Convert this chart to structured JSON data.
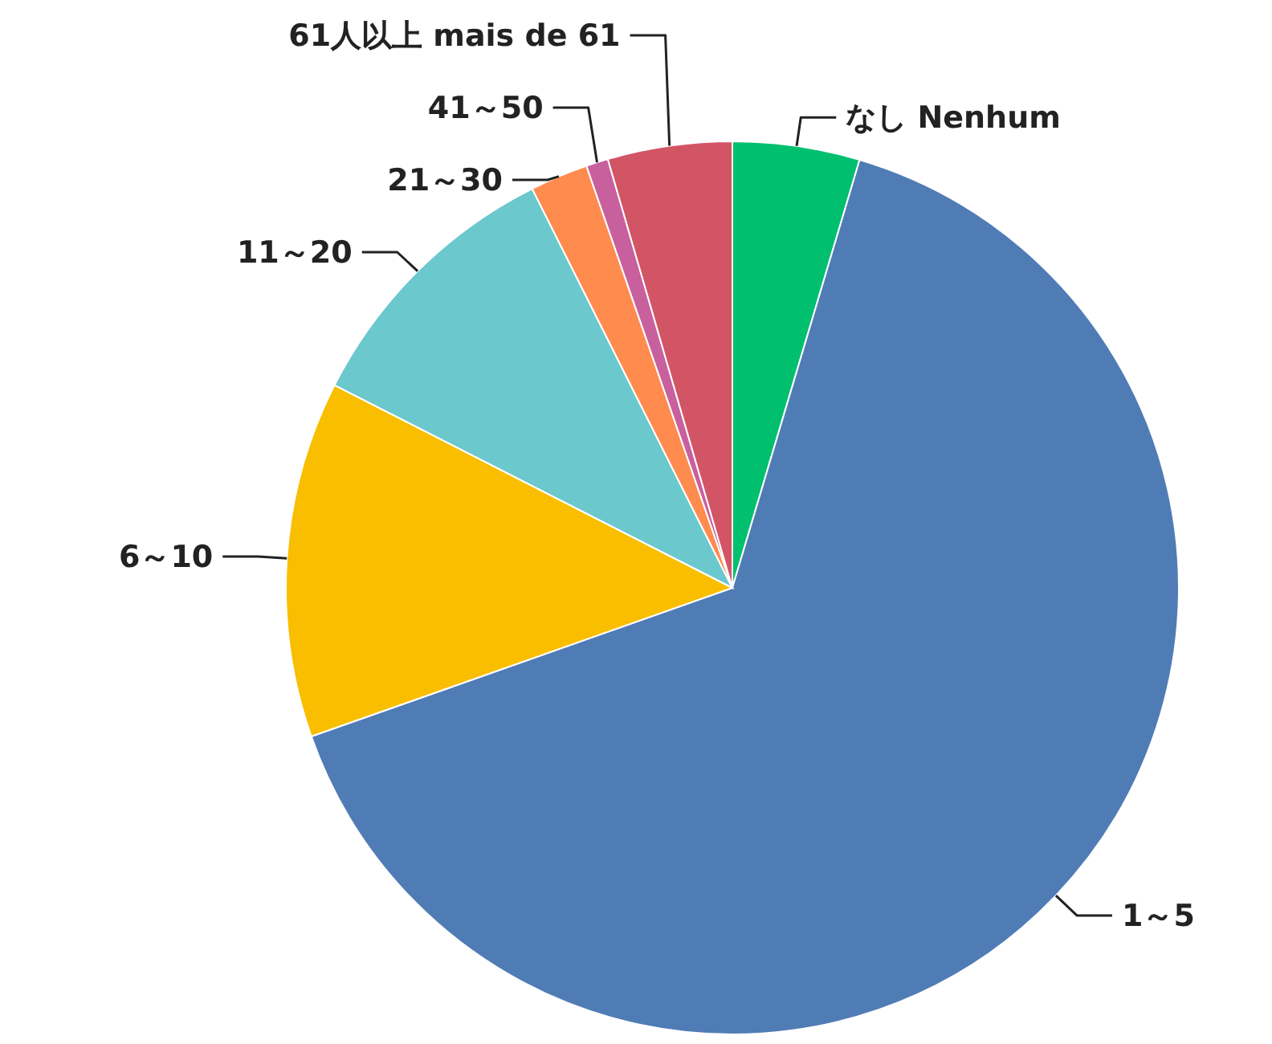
{
  "chart_data": {
    "type": "pie",
    "categories": [
      "なし Nenhum",
      "1～5",
      "6～10",
      "11～20",
      "21～30",
      "41～50",
      "61人以上 mais de 61"
    ],
    "values": [
      4.6,
      65.0,
      12.9,
      10.1,
      2.1,
      0.8,
      4.5
    ],
    "colors": [
      "#00bf6f",
      "#507cb6",
      "#f9be00",
      "#6bc8cd",
      "#ff8b4f",
      "#c9609e",
      "#d25565"
    ]
  }
}
